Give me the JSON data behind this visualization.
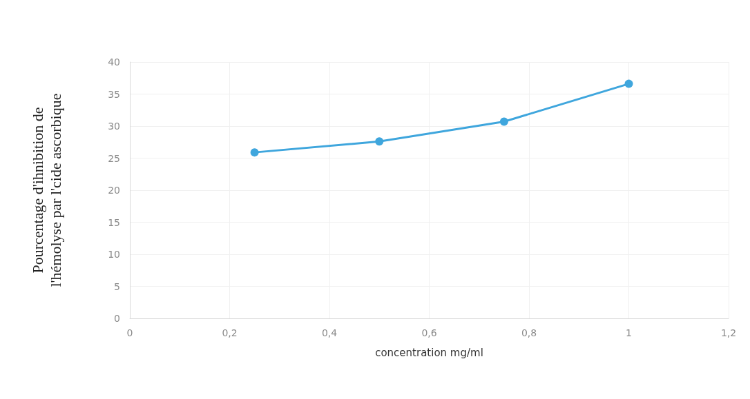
{
  "chart_data": {
    "type": "line",
    "xlabel": "concentration mg/ml",
    "ylabel": "Pourcentage d'ihnibition de\nl'hémolyse par l'cide ascorbique",
    "x": [
      0.25,
      0.5,
      0.75,
      1
    ],
    "series": [
      {
        "color": "#3fa6dd",
        "values": [
          25.9,
          27.6,
          30.7,
          36.6
        ]
      }
    ],
    "xlim": [
      0,
      1.2
    ],
    "xticks": [
      0,
      {
        "value": 0.2,
        "label": "0,2"
      },
      {
        "value": 0.4,
        "label": "0,4"
      },
      {
        "value": 0.6,
        "label": "0,6"
      },
      {
        "value": 0.8,
        "label": "0,8"
      },
      1,
      {
        "value": 1.2,
        "label": "1,2"
      }
    ],
    "ylim": [
      0,
      40
    ],
    "yticks": [
      0,
      5,
      10,
      15,
      20,
      25,
      30,
      35,
      40
    ],
    "grid": true,
    "marker": "circle",
    "line_style": "solid"
  }
}
